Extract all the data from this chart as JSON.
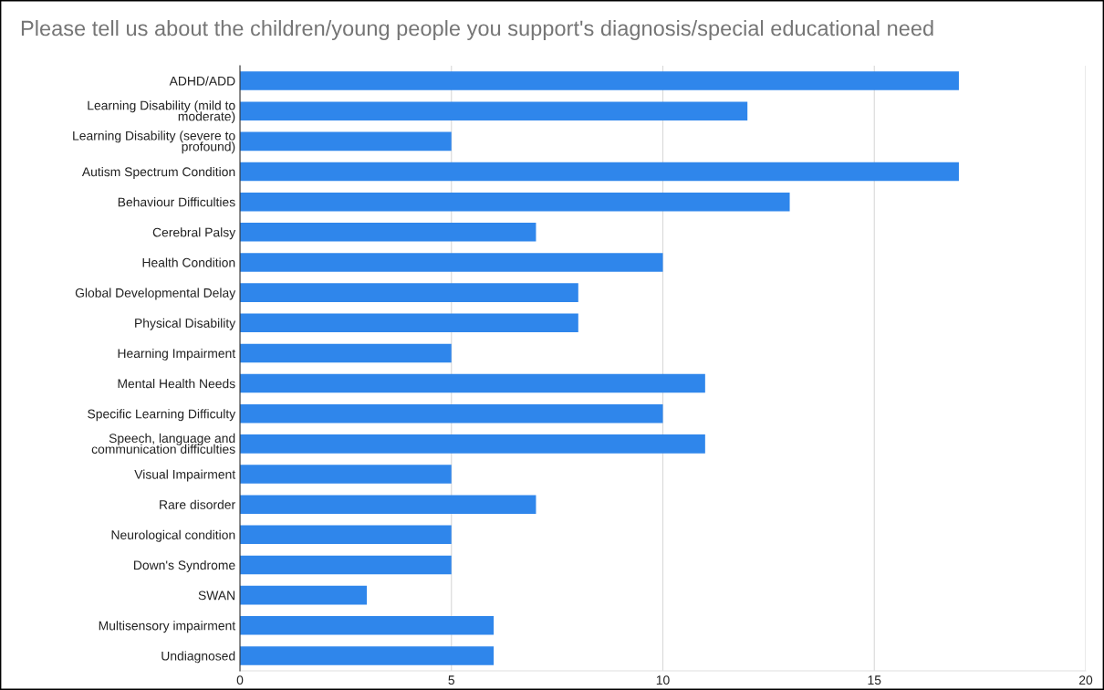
{
  "chart_data": {
    "type": "bar",
    "orientation": "horizontal",
    "title": "Please tell us about the children/young people you support's diagnosis/special educational need",
    "categories": [
      "ADHD/ADD",
      "Learning Disability (mild to\nmoderate)",
      "Learning Disability (severe to\nprofound)",
      "Autism Spectrum Condition",
      "Behaviour Difficulties",
      "Cerebral Palsy",
      "Health Condition",
      "Global Developmental Delay",
      "Physical Disability",
      "Hearning Impairment",
      "Mental Health Needs",
      "Specific Learning Difficulty",
      "Speech, language and\ncommunication difficulties",
      "Visual Impairment",
      "Rare disorder",
      "Neurological condition",
      "Down's Syndrome",
      "SWAN",
      "Multisensory impairment",
      "Undiagnosed"
    ],
    "values": [
      17,
      12,
      5,
      17,
      13,
      7,
      10,
      8,
      8,
      5,
      11,
      10,
      11,
      5,
      7,
      5,
      5,
      3,
      6,
      6
    ],
    "color": "#2f86eb",
    "xlim": [
      0,
      20
    ],
    "xticks": [
      0,
      5,
      10,
      15,
      20
    ],
    "grid": "x"
  }
}
